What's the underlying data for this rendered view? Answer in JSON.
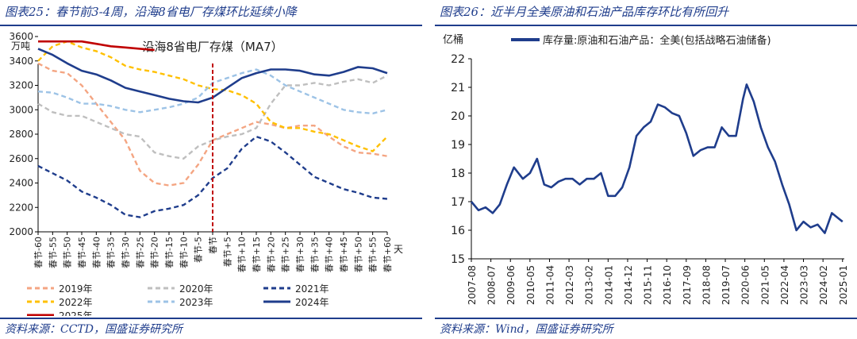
{
  "left": {
    "figure_title": "图表25：春节前3-4周，沿海8省电厂存煤环比延续小降",
    "source": "资料来源：CCTD，国盛证券研究所"
  },
  "right": {
    "figure_title": "图表26：近半月全美原油和石油产品库存环比有所回升",
    "source": "资料来源：Wind，国盛证券研究所"
  },
  "chart_data": [
    {
      "type": "line",
      "title": "沿海8省电厂存煤（MA7）",
      "unit_label": "万吨",
      "x_unit_label": "天",
      "ylim": [
        2000,
        3600
      ],
      "yticks": [
        2000,
        2200,
        2400,
        2600,
        2800,
        3000,
        3200,
        3400,
        3600
      ],
      "x_offsets": [
        -60,
        -55,
        -50,
        -45,
        -40,
        -35,
        -30,
        -25,
        -20,
        -15,
        -10,
        -5,
        0,
        5,
        10,
        15,
        20,
        25,
        30,
        35,
        40,
        45,
        50,
        55,
        60
      ],
      "x_tick_labels": [
        "春节-60",
        "春节-55",
        "春节-50",
        "春节-45",
        "春节-40",
        "春节-35",
        "春节-30",
        "春节-25",
        "春节-20",
        "春节-15",
        "春节-10",
        "春节-5",
        "春节",
        "春节+5",
        "春节+10",
        "春节+15",
        "春节+20",
        "春节+25",
        "春节+30",
        "春节+35",
        "春节+40",
        "春节+45",
        "春节+50",
        "春节+55",
        "春节+60"
      ],
      "reference_line": {
        "x": 0,
        "color": "#c00000"
      },
      "grid": false,
      "legend_position": "bottom",
      "series": [
        {
          "name": "2019年",
          "color": "#f4a582",
          "style": "dashed",
          "x": [
            -60,
            -55,
            -50,
            -45,
            -40,
            -35,
            -30,
            -25,
            -20,
            -15,
            -10,
            -5,
            0,
            5,
            10,
            15,
            20,
            25,
            30,
            35,
            40,
            45,
            50,
            55,
            60
          ],
          "values": [
            3380,
            3320,
            3300,
            3200,
            3050,
            2900,
            2750,
            2500,
            2400,
            2380,
            2400,
            2550,
            2750,
            2800,
            2850,
            2900,
            2880,
            2850,
            2870,
            2870,
            2780,
            2700,
            2650,
            2640,
            2620
          ]
        },
        {
          "name": "2020年",
          "color": "#bfbfbf",
          "style": "dashed",
          "x": [
            -60,
            -55,
            -50,
            -45,
            -40,
            -35,
            -30,
            -25,
            -20,
            -15,
            -10,
            -5,
            0,
            5,
            10,
            15,
            20,
            25,
            30,
            35,
            40,
            45,
            50,
            55,
            60
          ],
          "values": [
            3050,
            2980,
            2950,
            2950,
            2900,
            2850,
            2800,
            2780,
            2650,
            2620,
            2600,
            2700,
            2750,
            2780,
            2800,
            2850,
            3050,
            3200,
            3200,
            3220,
            3200,
            3230,
            3250,
            3220,
            3280
          ]
        },
        {
          "name": "2021年",
          "color": "#1f3d8c",
          "style": "dashed",
          "x": [
            -60,
            -55,
            -50,
            -45,
            -40,
            -35,
            -30,
            -25,
            -20,
            -15,
            -10,
            -5,
            0,
            5,
            10,
            15,
            20,
            25,
            30,
            35,
            40,
            45,
            50,
            55,
            60
          ],
          "values": [
            2540,
            2480,
            2420,
            2330,
            2280,
            2220,
            2140,
            2120,
            2170,
            2190,
            2220,
            2300,
            2440,
            2520,
            2680,
            2780,
            2740,
            2650,
            2550,
            2450,
            2400,
            2350,
            2320,
            2280,
            2270
          ]
        },
        {
          "name": "2022年",
          "color": "#ffc000",
          "style": "dashed",
          "x": [
            -60,
            -55,
            -50,
            -45,
            -40,
            -35,
            -30,
            -25,
            -20,
            -15,
            -10,
            -5,
            0,
            5,
            10,
            15,
            20,
            25,
            30,
            35,
            40,
            45,
            50,
            55,
            60
          ],
          "values": [
            3400,
            3520,
            3560,
            3510,
            3480,
            3430,
            3360,
            3330,
            3310,
            3280,
            3250,
            3200,
            3170,
            3160,
            3120,
            3050,
            2900,
            2850,
            2850,
            2820,
            2800,
            2750,
            2700,
            2660,
            2780
          ]
        },
        {
          "name": "2023年",
          "color": "#9dc3e6",
          "style": "dashed",
          "x": [
            -60,
            -55,
            -50,
            -45,
            -40,
            -35,
            -30,
            -25,
            -20,
            -15,
            -10,
            -5,
            0,
            5,
            10,
            15,
            20,
            25,
            30,
            35,
            40,
            45,
            50,
            55,
            60
          ],
          "values": [
            3150,
            3140,
            3100,
            3050,
            3050,
            3030,
            3000,
            2980,
            3000,
            3020,
            3050,
            3100,
            3220,
            3260,
            3300,
            3330,
            3280,
            3200,
            3150,
            3100,
            3050,
            3000,
            2980,
            2970,
            3000
          ]
        },
        {
          "name": "2024年",
          "color": "#1f3d8c",
          "style": "solid",
          "x": [
            -60,
            -55,
            -50,
            -45,
            -40,
            -35,
            -30,
            -25,
            -20,
            -15,
            -10,
            -5,
            0,
            5,
            10,
            15,
            20,
            25,
            30,
            35,
            40,
            45,
            50,
            55,
            60
          ],
          "values": [
            3500,
            3450,
            3380,
            3320,
            3290,
            3240,
            3180,
            3150,
            3120,
            3090,
            3070,
            3060,
            3100,
            3180,
            3260,
            3300,
            3330,
            3330,
            3320,
            3290,
            3280,
            3310,
            3350,
            3340,
            3300
          ]
        },
        {
          "name": "2025年",
          "color": "#c00000",
          "style": "solid",
          "x": [
            -60,
            -55,
            -50,
            -45,
            -40,
            -35,
            -30,
            -25,
            -20
          ],
          "values": [
            3560,
            3560,
            3560,
            3560,
            3540,
            3520,
            3510,
            3500,
            3490
          ]
        }
      ]
    },
    {
      "type": "line",
      "title": "",
      "unit_label": "亿桶",
      "ylim": [
        15,
        22
      ],
      "yticks": [
        15,
        16,
        17,
        18,
        19,
        20,
        21,
        22
      ],
      "x_tick_labels": [
        "2007-08",
        "2008-07",
        "2009-06",
        "2010-05",
        "2011-04",
        "2012-03",
        "2013-02",
        "2014-01",
        "2014-12",
        "2015-11",
        "2016-10",
        "2017-09",
        "2018-08",
        "2019-07",
        "2020-06",
        "2021-05",
        "2022-04",
        "2023-03",
        "2024-02",
        "2025-01"
      ],
      "grid": false,
      "legend_position": "top-left",
      "series": [
        {
          "name": "库存量:原油和石油产品：全美(包括战略石油储备)",
          "color": "#1f3d8c",
          "style": "solid",
          "x": [
            "2007-08",
            "2007-12",
            "2008-04",
            "2008-08",
            "2008-12",
            "2009-04",
            "2009-08",
            "2010-01",
            "2010-05",
            "2010-09",
            "2011-01",
            "2011-05",
            "2011-09",
            "2012-01",
            "2012-05",
            "2012-09",
            "2013-01",
            "2013-05",
            "2013-09",
            "2014-01",
            "2014-05",
            "2014-09",
            "2015-01",
            "2015-05",
            "2015-09",
            "2016-01",
            "2016-05",
            "2016-09",
            "2017-01",
            "2017-05",
            "2017-09",
            "2018-01",
            "2018-05",
            "2018-09",
            "2019-01",
            "2019-05",
            "2019-09",
            "2020-01",
            "2020-05",
            "2020-07",
            "2020-11",
            "2021-03",
            "2021-07",
            "2021-11",
            "2022-03",
            "2022-07",
            "2022-11",
            "2023-03",
            "2023-07",
            "2023-11",
            "2024-03",
            "2024-07",
            "2024-11",
            "2025-01"
          ],
          "values": [
            17.0,
            16.7,
            16.8,
            16.6,
            16.9,
            17.6,
            18.2,
            17.8,
            18.0,
            18.5,
            17.6,
            17.5,
            17.7,
            17.8,
            17.8,
            17.6,
            17.8,
            17.8,
            18.0,
            17.2,
            17.2,
            17.5,
            18.2,
            19.3,
            19.6,
            19.8,
            20.4,
            20.3,
            20.1,
            20.0,
            19.4,
            18.6,
            18.8,
            18.9,
            18.9,
            19.6,
            19.3,
            19.3,
            20.6,
            21.1,
            20.5,
            19.6,
            18.9,
            18.4,
            17.6,
            16.9,
            16.0,
            16.3,
            16.1,
            16.2,
            15.9,
            16.6,
            16.4,
            16.3
          ]
        }
      ]
    }
  ]
}
